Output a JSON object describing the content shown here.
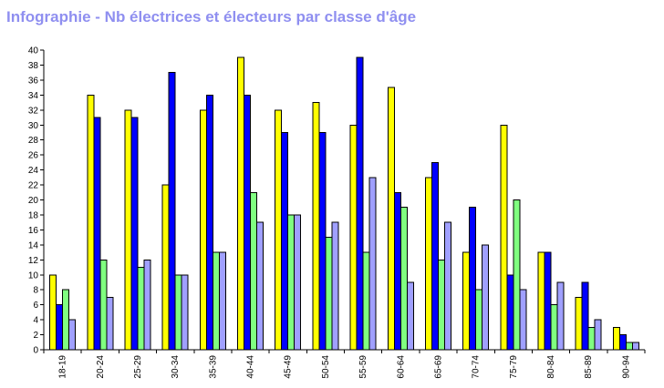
{
  "chart_data": {
    "type": "bar",
    "title": "Infographie - Nb électrices et électeurs par classe d'âge",
    "xlabel": "",
    "ylabel": "",
    "ylim": [
      0,
      40
    ],
    "ytick_step": 2,
    "grid": false,
    "legend": "none",
    "categories": [
      "18-19",
      "20-24",
      "25-29",
      "30-34",
      "35-39",
      "40-44",
      "45-49",
      "50-54",
      "55-59",
      "60-64",
      "65-69",
      "70-74",
      "75-79",
      "80-84",
      "85-89",
      "90-94"
    ],
    "series": [
      {
        "color": "#ffff00",
        "values": [
          10,
          34,
          32,
          22,
          32,
          39,
          32,
          33,
          30,
          35,
          23,
          13,
          30,
          13,
          7,
          3
        ]
      },
      {
        "color": "#0000ff",
        "values": [
          6,
          31,
          31,
          37,
          34,
          34,
          29,
          29,
          39,
          21,
          25,
          19,
          10,
          13,
          9,
          2
        ]
      },
      {
        "color": "#80ff80",
        "values": [
          8,
          12,
          11,
          10,
          13,
          21,
          18,
          15,
          13,
          19,
          12,
          8,
          20,
          6,
          3,
          1
        ]
      },
      {
        "color": "#a0a0ff",
        "values": [
          4,
          7,
          12,
          10,
          13,
          17,
          18,
          17,
          23,
          9,
          17,
          14,
          8,
          9,
          4,
          1
        ]
      }
    ]
  }
}
